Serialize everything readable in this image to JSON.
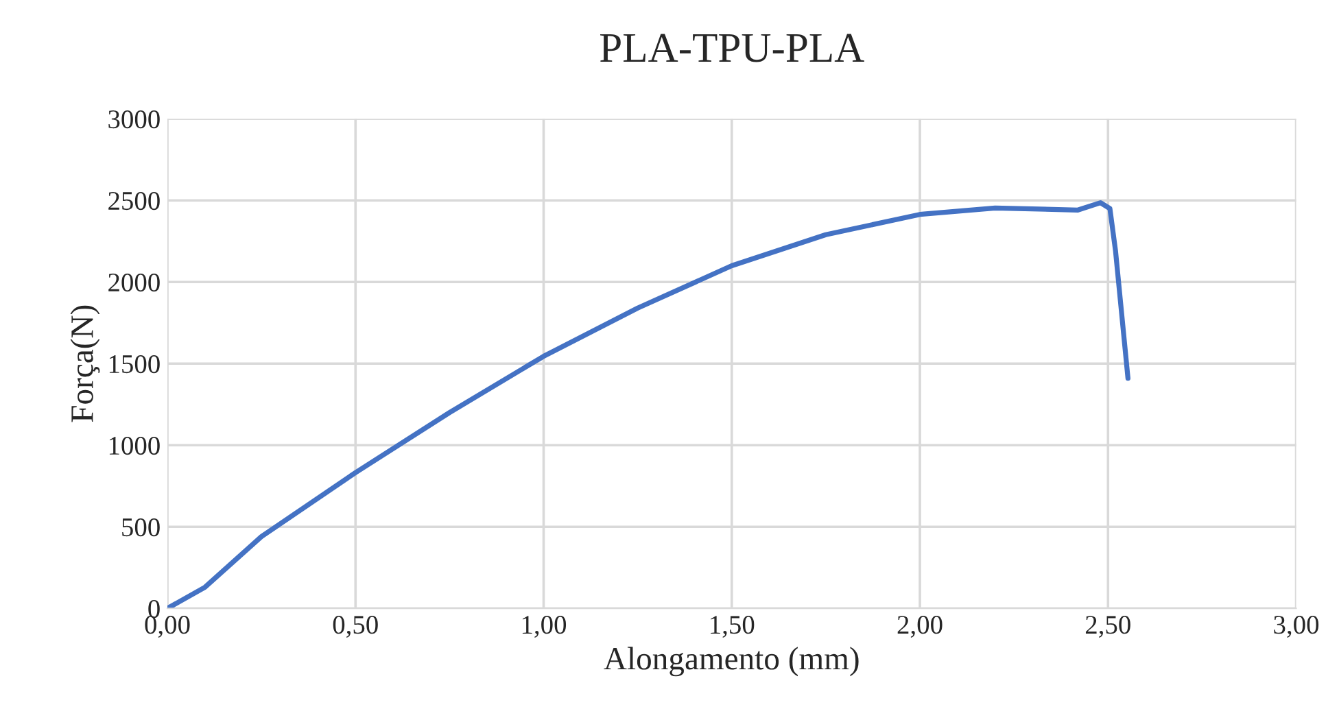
{
  "chart_data": {
    "type": "line",
    "title": "PLA-TPU-PLA",
    "xlabel": "Alongamento (mm)",
    "ylabel": "Força(N)",
    "x": [
      0,
      0.1,
      0.25,
      0.5,
      0.75,
      1.0,
      1.25,
      1.5,
      1.75,
      2.0,
      2.2,
      2.42,
      2.48,
      2.505,
      2.52,
      2.553
    ],
    "series": [
      {
        "color": "#4472c4",
        "values": [
          0,
          130,
          440,
          832,
          1200,
          1545,
          1840,
          2100,
          2290,
          2414,
          2453,
          2441,
          2486,
          2450,
          2190,
          1410
        ]
      }
    ],
    "xlim": [
      0,
      3
    ],
    "ylim": [
      0,
      3000
    ],
    "xticks": [
      {
        "value": 0,
        "label": "0,00"
      },
      {
        "value": 0.5,
        "label": "0,50"
      },
      {
        "value": 1,
        "label": "1,00"
      },
      {
        "value": 1.5,
        "label": "1,50"
      },
      {
        "value": 2,
        "label": "2,00"
      },
      {
        "value": 2.5,
        "label": "2,50"
      },
      {
        "value": 3,
        "label": "3,00"
      }
    ],
    "yticks": [
      0,
      500,
      1000,
      1500,
      2000,
      2500,
      3000
    ],
    "grid": true,
    "legend": false,
    "marker": "none",
    "line_style": "solid"
  }
}
